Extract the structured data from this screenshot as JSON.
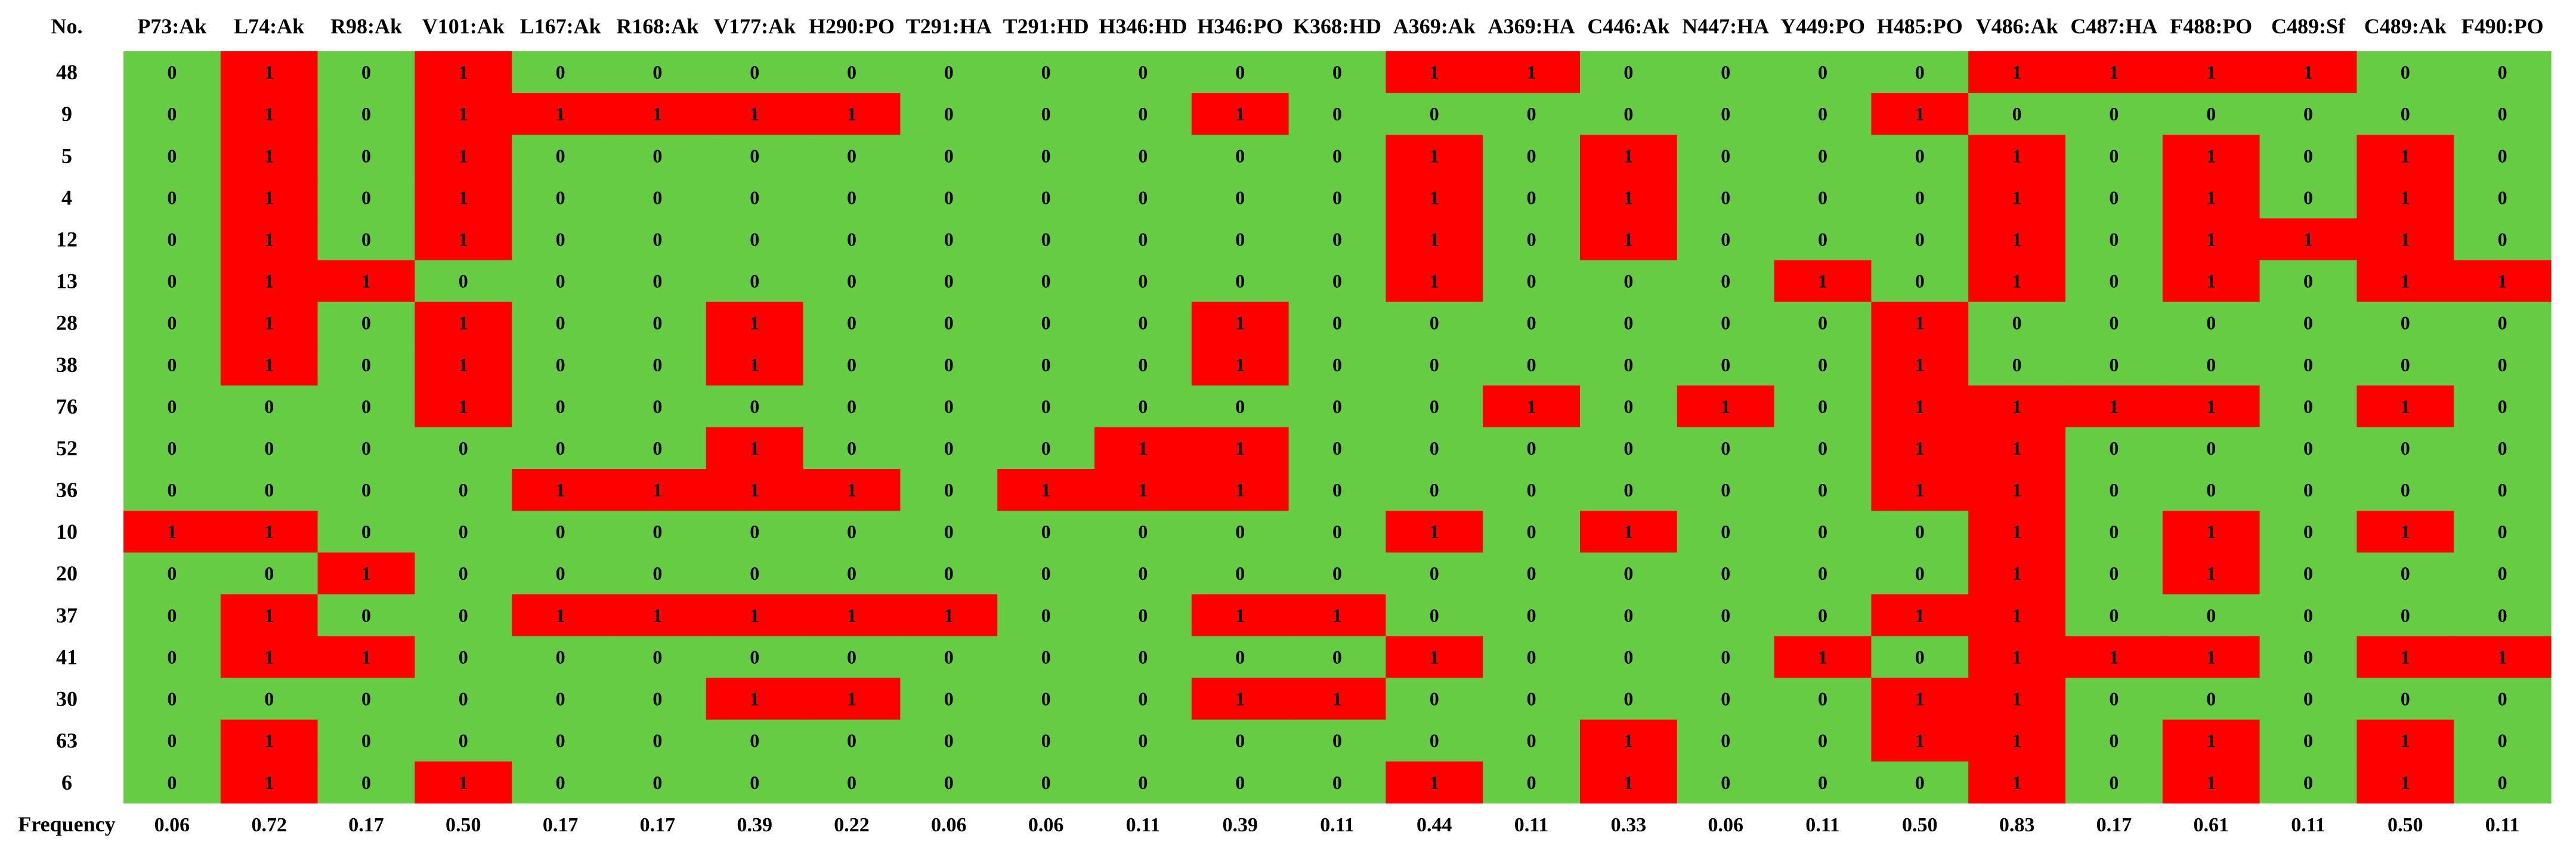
{
  "chart_data": {
    "type": "heatmap",
    "corner_label": "No.",
    "columns": [
      "P73:Ak",
      "L74:Ak",
      "R98:Ak",
      "V101:Ak",
      "L167:Ak",
      "R168:Ak",
      "V177:Ak",
      "H290:PO",
      "T291:HA",
      "T291:HD",
      "H346:HD",
      "H346:PO",
      "K368:HD",
      "A369:Ak",
      "A369:HA",
      "C446:Ak",
      "N447:HA",
      "Y449:PO",
      "H485:PO",
      "V486:Ak",
      "C487:HA",
      "F488:PO",
      "C489:Sf",
      "C489:Ak",
      "F490:PO"
    ],
    "rows": [
      {
        "label": "48",
        "values": [
          0,
          1,
          0,
          1,
          0,
          0,
          0,
          0,
          0,
          0,
          0,
          0,
          0,
          1,
          1,
          0,
          0,
          0,
          0,
          1,
          1,
          1,
          1,
          0,
          0
        ]
      },
      {
        "label": "9",
        "values": [
          0,
          1,
          0,
          1,
          1,
          1,
          1,
          1,
          0,
          0,
          0,
          1,
          0,
          0,
          0,
          0,
          0,
          0,
          1,
          0,
          0,
          0,
          0,
          0,
          0
        ]
      },
      {
        "label": "5",
        "values": [
          0,
          1,
          0,
          1,
          0,
          0,
          0,
          0,
          0,
          0,
          0,
          0,
          0,
          1,
          0,
          1,
          0,
          0,
          0,
          1,
          0,
          1,
          0,
          1,
          0
        ]
      },
      {
        "label": "4",
        "values": [
          0,
          1,
          0,
          1,
          0,
          0,
          0,
          0,
          0,
          0,
          0,
          0,
          0,
          1,
          0,
          1,
          0,
          0,
          0,
          1,
          0,
          1,
          0,
          1,
          0
        ]
      },
      {
        "label": "12",
        "values": [
          0,
          1,
          0,
          1,
          0,
          0,
          0,
          0,
          0,
          0,
          0,
          0,
          0,
          1,
          0,
          1,
          0,
          0,
          0,
          1,
          0,
          1,
          1,
          1,
          0
        ]
      },
      {
        "label": "13",
        "values": [
          0,
          1,
          1,
          0,
          0,
          0,
          0,
          0,
          0,
          0,
          0,
          0,
          0,
          1,
          0,
          0,
          0,
          1,
          0,
          1,
          0,
          1,
          0,
          1,
          1
        ]
      },
      {
        "label": "28",
        "values": [
          0,
          1,
          0,
          1,
          0,
          0,
          1,
          0,
          0,
          0,
          0,
          1,
          0,
          0,
          0,
          0,
          0,
          0,
          1,
          0,
          0,
          0,
          0,
          0,
          0
        ]
      },
      {
        "label": "38",
        "values": [
          0,
          1,
          0,
          1,
          0,
          0,
          1,
          0,
          0,
          0,
          0,
          1,
          0,
          0,
          0,
          0,
          0,
          0,
          1,
          0,
          0,
          0,
          0,
          0,
          0
        ]
      },
      {
        "label": "76",
        "values": [
          0,
          0,
          0,
          1,
          0,
          0,
          0,
          0,
          0,
          0,
          0,
          0,
          0,
          0,
          1,
          0,
          1,
          0,
          1,
          1,
          1,
          1,
          0,
          1,
          0
        ]
      },
      {
        "label": "52",
        "values": [
          0,
          0,
          0,
          0,
          0,
          0,
          1,
          0,
          0,
          0,
          1,
          1,
          0,
          0,
          0,
          0,
          0,
          0,
          1,
          1,
          0,
          0,
          0,
          0,
          0
        ]
      },
      {
        "label": "36",
        "values": [
          0,
          0,
          0,
          0,
          1,
          1,
          1,
          1,
          0,
          1,
          1,
          1,
          0,
          0,
          0,
          0,
          0,
          0,
          1,
          1,
          0,
          0,
          0,
          0,
          0
        ]
      },
      {
        "label": "10",
        "values": [
          1,
          1,
          0,
          0,
          0,
          0,
          0,
          0,
          0,
          0,
          0,
          0,
          0,
          1,
          0,
          1,
          0,
          0,
          0,
          1,
          0,
          1,
          0,
          1,
          0
        ]
      },
      {
        "label": "20",
        "values": [
          0,
          0,
          1,
          0,
          0,
          0,
          0,
          0,
          0,
          0,
          0,
          0,
          0,
          0,
          0,
          0,
          0,
          0,
          0,
          1,
          0,
          1,
          0,
          0,
          0
        ]
      },
      {
        "label": "37",
        "values": [
          0,
          1,
          0,
          0,
          1,
          1,
          1,
          1,
          1,
          0,
          0,
          1,
          1,
          0,
          0,
          0,
          0,
          0,
          1,
          1,
          0,
          0,
          0,
          0,
          0
        ]
      },
      {
        "label": "41",
        "values": [
          0,
          1,
          1,
          0,
          0,
          0,
          0,
          0,
          0,
          0,
          0,
          0,
          0,
          1,
          0,
          0,
          0,
          1,
          0,
          1,
          1,
          1,
          0,
          1,
          1
        ]
      },
      {
        "label": "30",
        "values": [
          0,
          0,
          0,
          0,
          0,
          0,
          1,
          1,
          0,
          0,
          0,
          1,
          1,
          0,
          0,
          0,
          0,
          0,
          1,
          1,
          0,
          0,
          0,
          0,
          0
        ]
      },
      {
        "label": "63",
        "values": [
          0,
          1,
          0,
          0,
          0,
          0,
          0,
          0,
          0,
          0,
          0,
          0,
          0,
          0,
          0,
          1,
          0,
          0,
          1,
          1,
          0,
          1,
          0,
          1,
          0
        ]
      },
      {
        "label": "6",
        "values": [
          0,
          1,
          0,
          1,
          0,
          0,
          0,
          0,
          0,
          0,
          0,
          0,
          0,
          1,
          0,
          1,
          0,
          0,
          0,
          1,
          0,
          1,
          0,
          1,
          0
        ]
      }
    ],
    "frequency_label": "Frequency",
    "frequency": [
      "0.06",
      "0.72",
      "0.17",
      "0.50",
      "0.17",
      "0.17",
      "0.39",
      "0.22",
      "0.06",
      "0.06",
      "0.11",
      "0.39",
      "0.11",
      "0.44",
      "0.11",
      "0.33",
      "0.06",
      "0.11",
      "0.50",
      "0.83",
      "0.17",
      "0.61",
      "0.11",
      "0.50",
      "0.11"
    ],
    "colors": {
      "zero": "#66cc44",
      "one": "#ff0000",
      "text": "#000000",
      "background": "#ffffff"
    }
  }
}
